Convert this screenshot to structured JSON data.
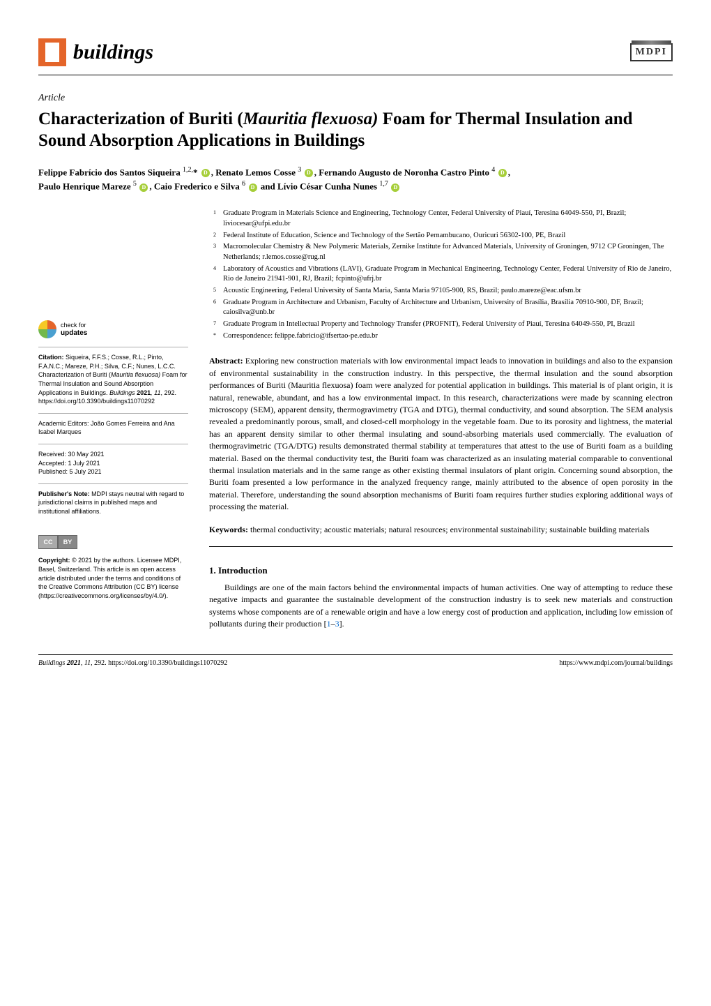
{
  "header": {
    "journal_name": "buildings",
    "publisher_logo": "MDPI"
  },
  "article": {
    "type": "Article",
    "title_pre": "Characterization of Buriti (",
    "title_species": "Mauritia flexuosa)",
    "title_post": " Foam for Thermal Insulation and Sound Absorption Applications in Buildings"
  },
  "authors_line_1": "Felippe Fabrício dos Santos Siqueira ",
  "author1_sup": "1,2,",
  "authors_mid_1": "* ",
  "authors_2": ", Renato Lemos Cosse ",
  "author2_sup": "3 ",
  "authors_3": ", Fernando Augusto de Noronha Castro Pinto ",
  "author3_sup": "4 ",
  "authors_4": ",",
  "authors_line_2_1": "Paulo Henrique Mareze ",
  "author4_sup": "5 ",
  "authors_5": ", Caio Frederico e Silva ",
  "author5_sup": "6 ",
  "authors_6": " and Lívio César Cunha Nunes ",
  "author6_sup": "1,7 ",
  "affiliations": [
    {
      "n": "1",
      "text": "Graduate Program in Materials Science and Engineering, Technology Center, Federal University of Piauí, Teresina 64049-550, PI, Brazil; liviocesar@ufpi.edu.br"
    },
    {
      "n": "2",
      "text": "Federal Institute of Education, Science and Technology of the Sertão Pernambucano, Ouricuri 56302-100, PE, Brazil"
    },
    {
      "n": "3",
      "text": "Macromolecular Chemistry & New Polymeric Materials, Zernike Institute for Advanced Materials, University of Groningen, 9712 CP Groningen, The Netherlands; r.lemos.cosse@rug.nl"
    },
    {
      "n": "4",
      "text": "Laboratory of Acoustics and Vibrations (LAVI), Graduate Program in Mechanical Engineering, Technology Center, Federal University of Rio de Janeiro, Rio de Janeiro 21941-901, RJ, Brazil; fcpinto@ufrj.br"
    },
    {
      "n": "5",
      "text": "Acoustic Engineering, Federal University of Santa Maria, Santa Maria 97105-900, RS, Brazil; paulo.mareze@eac.ufsm.br"
    },
    {
      "n": "6",
      "text": "Graduate Program in Architecture and Urbanism, Faculty of Architecture and Urbanism, University of Brasília, Brasília 70910-900, DF, Brazil; caiosilva@unb.br"
    },
    {
      "n": "7",
      "text": "Graduate Program in Intellectual Property and Technology Transfer (PROFNIT), Federal University of Piauí, Teresina 64049-550, PI, Brazil"
    },
    {
      "n": "*",
      "text": "Correspondence: felippe.fabricio@ifsertao-pe.edu.br"
    }
  ],
  "sidebar": {
    "check_line1": "check for",
    "check_line2": "updates",
    "citation_label": "Citation:",
    "citation": " Siqueira, F.F.S.; Cosse, R.L.; Pinto, F.A.N.C.; Mareze, P.H.; Silva, C.F.; Nunes, L.C.C. Characterization of Buriti (",
    "citation_species": "Mauritia flexuosa)",
    "citation_post": " Foam for Thermal Insulation and Sound Absorption Applications in Buildings. ",
    "citation_journal": "Buildings ",
    "citation_year": "2021",
    "citation_vol": ", 11",
    "citation_pages": ", 292.  https://doi.org/10.3390/buildings11070292",
    "editors_label": "Academic Editors: ",
    "editors": "João Gomes Ferreira and Ana Isabel Marques",
    "received_label": "Received: ",
    "received": "30 May 2021",
    "accepted_label": "Accepted: ",
    "accepted": "1 July 2021",
    "published_label": "Published: ",
    "published": "5 July 2021",
    "pubnote_label": "Publisher's Note:",
    "pubnote": " MDPI stays neutral with regard to jurisdictional claims in published maps and institutional affiliations.",
    "copyright_label": "Copyright:",
    "copyright": " © 2021 by the authors. Licensee MDPI, Basel, Switzerland. This article is an open access article distributed under the terms and conditions of the Creative Commons Attribution (CC BY) license (https://creativecommons.org/licenses/by/4.0/)."
  },
  "abstract": {
    "label": "Abstract:",
    "text": " Exploring new construction materials with low environmental impact leads to innovation in buildings and also to the expansion of environmental sustainability in the construction industry. In this perspective, the thermal insulation and the sound absorption performances of Buriti (Mauritia flexuosa) foam were analyzed for potential application in buildings. This material is of plant origin, it is natural, renewable, abundant, and has a low environmental impact. In this research, characterizations were made by scanning electron microscopy (SEM), apparent density, thermogravimetry (TGA and DTG), thermal conductivity, and sound absorption. The SEM analysis revealed a predominantly porous, small, and closed-cell morphology in the vegetable foam. Due to its porosity and lightness, the material has an apparent density similar to other thermal insulating and sound-absorbing materials used commercially. The evaluation of thermogravimetric (TGA/DTG) results demonstrated thermal stability at temperatures that attest to the use of Buriti foam as a building material. Based on the thermal conductivity test, the Buriti foam was characterized as an insulating material comparable to conventional thermal insulation materials and in the same range as other existing thermal insulators of plant origin. Concerning sound absorption, the Buriti foam presented a low performance in the analyzed frequency range, mainly attributed to the absence of open porosity in the material. Therefore, understanding the sound absorption mechanisms of Buriti foam requires further studies exploring additional ways of processing the material."
  },
  "keywords": {
    "label": "Keywords:",
    "text": " thermal conductivity; acoustic materials; natural resources; environmental sustainability; sustainable building materials"
  },
  "section1": {
    "heading": "1. Introduction",
    "para1_pre": "Buildings are one of the main factors behind the environmental impacts of human activities. One way of attempting to reduce these negative impacts and guarantee the sustainable development of the construction industry is to seek new materials and construction systems whose components are of a renewable origin and have a low energy cost of production and application, including low emission of pollutants during their production [",
    "ref1": "1",
    "ref_dash": "–",
    "ref3": "3",
    "para1_post": "]."
  },
  "footer": {
    "journal": "Buildings ",
    "year_vol": "2021",
    "vol": ", 11,",
    "pages": " 292.  https://doi.org/10.3390/buildings11070292",
    "right": "https://www.mdpi.com/journal/buildings"
  },
  "colors": {
    "accent": "#e4652a",
    "text": "#000000",
    "link": "#0066cc",
    "rule": "#000000",
    "orcid": "#a6ce39"
  }
}
